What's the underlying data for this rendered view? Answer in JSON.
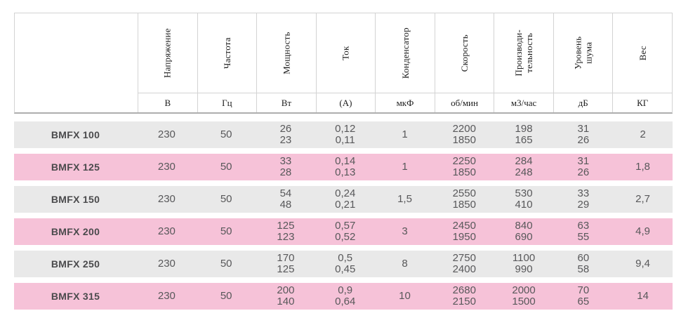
{
  "table": {
    "colors": {
      "row_gray": "#e9e9e9",
      "row_pink": "#f6c2d8",
      "border": "#d3d3d3",
      "border_bottom": "#aeaeae",
      "header_text": "#1c1c1c",
      "model_text": "#4a4a4c",
      "value_text": "#58585a",
      "background": "#ffffff"
    },
    "columns": [
      {
        "label": "Напряжение",
        "unit": "В"
      },
      {
        "label": "Частота",
        "unit": "Гц"
      },
      {
        "label": "Мощность",
        "unit": "Вт"
      },
      {
        "label": "Ток",
        "unit": "(А)"
      },
      {
        "label": "Конденсатор",
        "unit": "мкФ"
      },
      {
        "label": "Скорость",
        "unit": "об/мин"
      },
      {
        "label": "Производи-\nтельность",
        "unit": "м3/час"
      },
      {
        "label": "Уровень\nшума",
        "unit": "дБ"
      },
      {
        "label": "Вес",
        "unit": "КГ"
      }
    ],
    "rows": [
      {
        "model": "BMFX 100",
        "values": [
          "230",
          "50",
          "26\n23",
          "0,12\n0,11",
          "1",
          "2200\n1850",
          "198\n165",
          "31\n26",
          "2"
        ]
      },
      {
        "model": "BMFX 125",
        "values": [
          "230",
          "50",
          "33\n28",
          "0,14\n0,13",
          "1",
          "2250\n1850",
          "284\n248",
          "31\n26",
          "1,8"
        ]
      },
      {
        "model": "BMFX 150",
        "values": [
          "230",
          "50",
          "54\n48",
          "0,24\n0,21",
          "1,5",
          "2550\n1850",
          "530\n410",
          "33\n29",
          "2,7"
        ]
      },
      {
        "model": "BMFX 200",
        "values": [
          "230",
          "50",
          "125\n123",
          "0,57\n0,52",
          "3",
          "2450\n1950",
          "840\n690",
          "63\n55",
          "4,9"
        ]
      },
      {
        "model": "BMFX 250",
        "values": [
          "230",
          "50",
          "170\n125",
          "0,5\n0,45",
          "8",
          "2750\n2400",
          "1100\n990",
          "60\n58",
          "9,4"
        ]
      },
      {
        "model": "BMFX 315",
        "values": [
          "230",
          "50",
          "200\n140",
          "0,9\n0,64",
          "10",
          "2680\n2150",
          "2000\n1500",
          "70\n65",
          "14"
        ]
      }
    ]
  }
}
